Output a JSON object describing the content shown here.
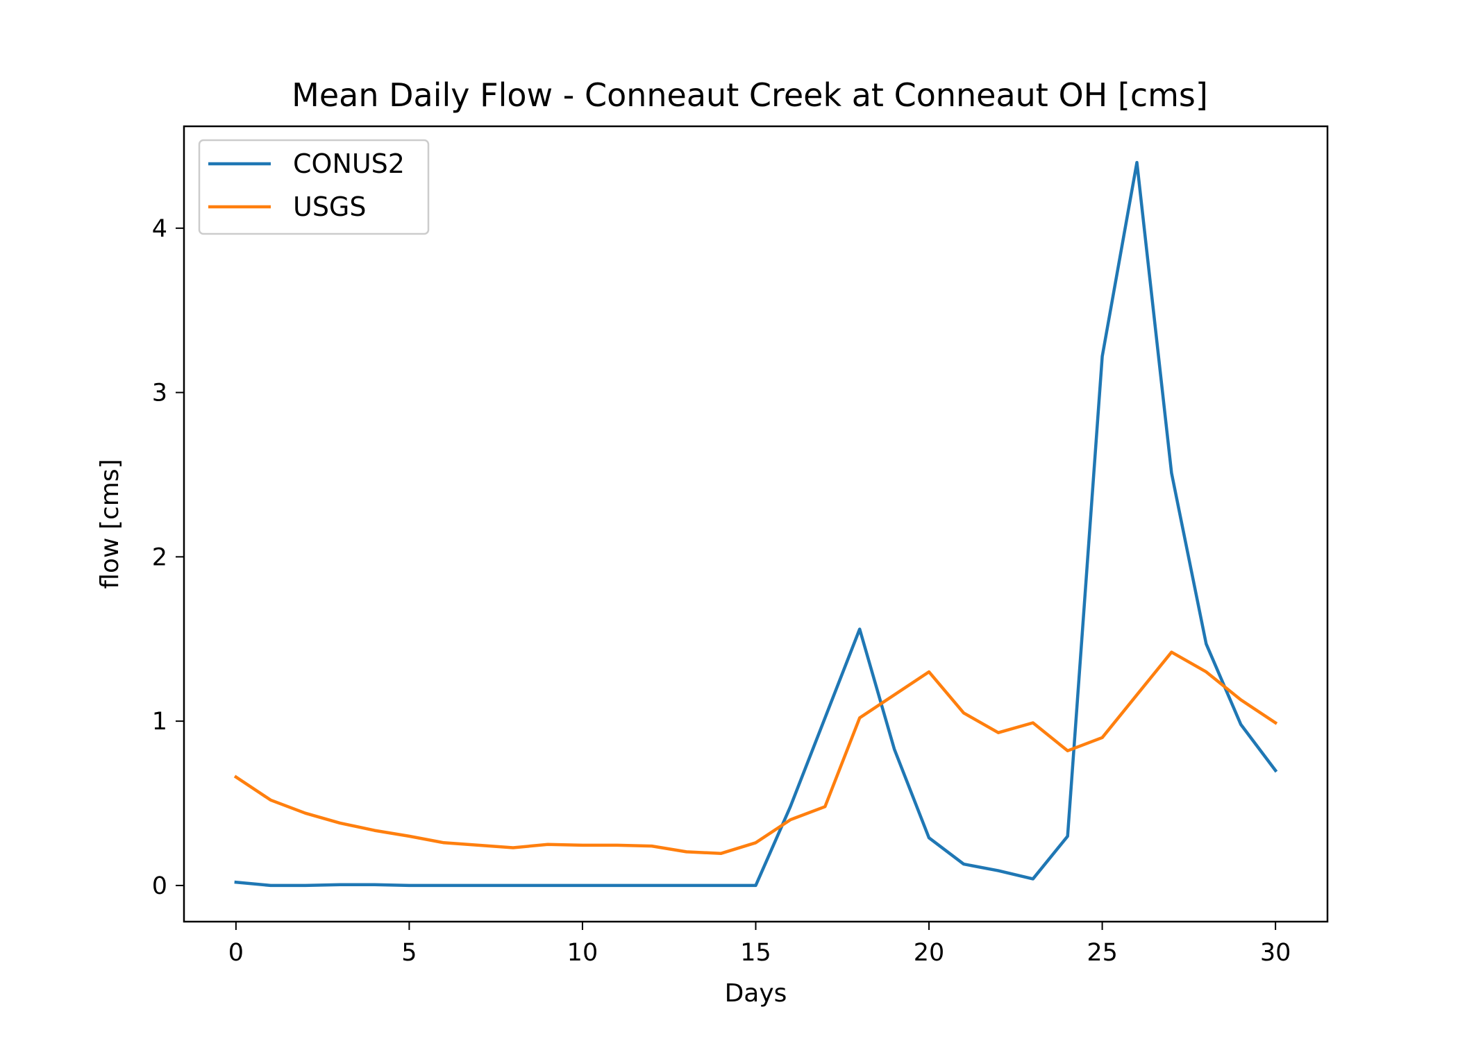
{
  "chart_data": {
    "type": "line",
    "title": "Mean Daily Flow - Conneaut Creek at Conneaut OH [cms]",
    "xlabel": "Days",
    "ylabel": "flow [cms]",
    "xlim": [
      -1.5,
      31.5
    ],
    "ylim": [
      -0.22,
      4.62
    ],
    "xticks": [
      0,
      5,
      10,
      15,
      20,
      25,
      30
    ],
    "yticks": [
      0,
      1,
      2,
      3,
      4
    ],
    "grid": false,
    "legend_position": "top-left",
    "x": [
      0,
      1,
      2,
      3,
      4,
      5,
      6,
      7,
      8,
      9,
      10,
      11,
      12,
      13,
      14,
      15,
      16,
      17,
      18,
      19,
      20,
      21,
      22,
      23,
      24,
      25,
      26,
      27,
      28,
      29,
      30
    ],
    "series": [
      {
        "name": "CONUS2",
        "color": "#1f77b4",
        "values": [
          0.02,
          0.0,
          0.0,
          0.005,
          0.005,
          0.0,
          0.0,
          0.0,
          0.0,
          0.0,
          0.0,
          0.0,
          0.0,
          0.0,
          0.0,
          0.0,
          0.48,
          1.02,
          1.56,
          0.83,
          0.29,
          0.13,
          0.09,
          0.04,
          0.3,
          3.22,
          4.4,
          2.51,
          1.47,
          0.98,
          0.7
        ]
      },
      {
        "name": "USGS",
        "color": "#ff7f0e",
        "values": [
          0.66,
          0.52,
          0.44,
          0.38,
          0.335,
          0.3,
          0.26,
          0.245,
          0.23,
          0.25,
          0.245,
          0.245,
          0.24,
          0.205,
          0.195,
          0.26,
          0.4,
          0.48,
          1.02,
          1.16,
          1.3,
          1.05,
          0.93,
          0.99,
          0.82,
          0.9,
          1.16,
          1.42,
          1.3,
          1.13,
          0.99
        ]
      }
    ]
  }
}
